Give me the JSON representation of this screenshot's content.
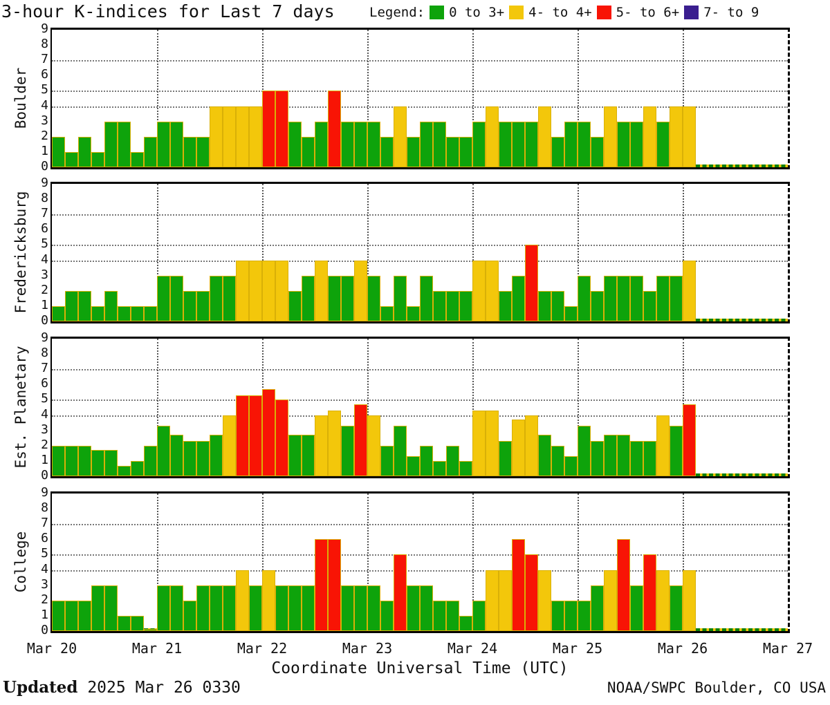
{
  "title": "3-hour K-indices for Last 7 days",
  "legend": {
    "label": "Legend:",
    "items": [
      {
        "label": "0 to 3+",
        "color": "#0ea30b"
      },
      {
        "label": "4- to 4+",
        "color": "#f3c70b"
      },
      {
        "label": "5- to 6+",
        "color": "#f81405"
      },
      {
        "label": "7- to 9",
        "color": "#3a1e8f"
      }
    ]
  },
  "x_axis": {
    "ticks": [
      "Mar 20",
      "Mar 21",
      "Mar 22",
      "Mar 23",
      "Mar 24",
      "Mar 25",
      "Mar 26",
      "Mar 27"
    ],
    "label": "Coordinate Universal Time (UTC)"
  },
  "y_axis": {
    "ticks": [
      9,
      8,
      7,
      6,
      5,
      4,
      3,
      2,
      1,
      0
    ]
  },
  "footer": {
    "updated_label": "Updated",
    "updated_value": "2025 Mar 26 0330",
    "credit": "NOAA/SWPC Boulder, CO USA"
  },
  "color_scale_thresholds": {
    "yellow_min": 3.67,
    "red_min": 4.67,
    "purple_min": 6.67
  },
  "chart_data": [
    {
      "type": "bar",
      "station": "Boulder",
      "bars_per_day": 8,
      "interval_hours": 3,
      "ylim": [
        0,
        9
      ],
      "threshold_gridlines": [
        4,
        5,
        7
      ],
      "days": [
        "Mar 20",
        "Mar 21",
        "Mar 22",
        "Mar 23",
        "Mar 24",
        "Mar 25",
        "Mar 26"
      ],
      "values": [
        [
          2,
          1,
          2,
          1,
          3,
          3,
          1,
          2
        ],
        [
          3,
          3,
          2,
          2,
          4,
          4,
          4,
          4
        ],
        [
          5,
          5,
          3,
          2,
          3,
          5,
          3,
          3
        ],
        [
          3,
          2,
          4,
          2,
          3,
          3,
          2,
          2
        ],
        [
          3,
          4,
          3,
          3,
          3,
          4,
          2,
          3
        ],
        [
          3,
          2,
          4,
          3,
          3,
          4,
          3,
          4
        ],
        [
          4,
          null,
          null,
          null,
          null,
          null,
          null,
          null
        ]
      ]
    },
    {
      "type": "bar",
      "station": "Fredericksburg",
      "bars_per_day": 8,
      "interval_hours": 3,
      "ylim": [
        0,
        9
      ],
      "threshold_gridlines": [
        4,
        5,
        7
      ],
      "days": [
        "Mar 20",
        "Mar 21",
        "Mar 22",
        "Mar 23",
        "Mar 24",
        "Mar 25",
        "Mar 26"
      ],
      "values": [
        [
          1,
          2,
          2,
          1,
          2,
          1,
          1,
          1
        ],
        [
          3,
          3,
          2,
          2,
          3,
          3,
          4,
          4
        ],
        [
          4,
          4,
          2,
          3,
          4,
          3,
          3,
          4
        ],
        [
          3,
          1,
          3,
          1,
          3,
          2,
          2,
          2
        ],
        [
          4,
          4,
          2,
          3,
          5,
          2,
          2,
          1
        ],
        [
          3,
          2,
          3,
          3,
          3,
          2,
          3,
          3
        ],
        [
          4,
          null,
          null,
          null,
          null,
          null,
          null,
          null
        ]
      ]
    },
    {
      "type": "bar",
      "station": "Est. Planetary",
      "bars_per_day": 8,
      "interval_hours": 3,
      "ylim": [
        0,
        9
      ],
      "threshold_gridlines": [
        4,
        5,
        7
      ],
      "days": [
        "Mar 20",
        "Mar 21",
        "Mar 22",
        "Mar 23",
        "Mar 24",
        "Mar 25",
        "Mar 26"
      ],
      "values": [
        [
          2.0,
          2.0,
          2.0,
          1.7,
          1.7,
          0.7,
          1.0,
          2.0
        ],
        [
          3.3,
          2.7,
          2.3,
          2.3,
          2.7,
          4.0,
          5.3,
          5.3
        ],
        [
          5.7,
          5.0,
          2.7,
          2.7,
          4.0,
          4.3,
          3.3,
          4.7
        ],
        [
          4.0,
          2.0,
          3.3,
          1.3,
          2.0,
          1.0,
          2.0,
          1.0
        ],
        [
          4.3,
          4.3,
          2.3,
          3.7,
          4.0,
          2.7,
          2.0,
          1.3
        ],
        [
          3.3,
          2.3,
          2.7,
          2.7,
          2.3,
          2.3,
          4.0,
          3.3
        ],
        [
          4.7,
          null,
          null,
          null,
          null,
          null,
          null,
          null
        ]
      ]
    },
    {
      "type": "bar",
      "station": "College",
      "bars_per_day": 8,
      "interval_hours": 3,
      "ylim": [
        0,
        9
      ],
      "threshold_gridlines": [
        4,
        5,
        7
      ],
      "days": [
        "Mar 20",
        "Mar 21",
        "Mar 22",
        "Mar 23",
        "Mar 24",
        "Mar 25",
        "Mar 26"
      ],
      "values": [
        [
          2,
          2,
          2,
          3,
          3,
          1,
          1,
          0
        ],
        [
          3,
          3,
          2,
          3,
          3,
          3,
          4,
          3
        ],
        [
          4,
          3,
          3,
          3,
          6,
          6,
          3,
          3
        ],
        [
          3,
          2,
          5,
          3,
          3,
          2,
          2,
          1
        ],
        [
          2,
          4,
          4,
          6,
          5,
          4,
          2,
          2
        ],
        [
          2,
          3,
          4,
          6,
          3,
          5,
          4,
          3
        ],
        [
          4,
          null,
          null,
          null,
          null,
          null,
          null,
          null
        ]
      ]
    }
  ]
}
